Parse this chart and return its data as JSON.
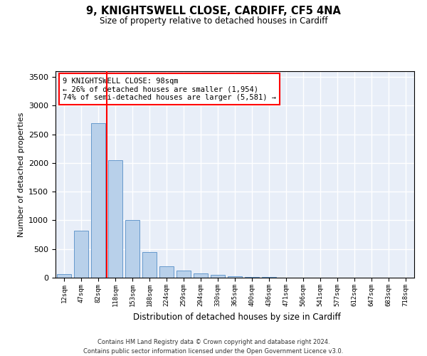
{
  "title": "9, KNIGHTSWELL CLOSE, CARDIFF, CF5 4NA",
  "subtitle": "Size of property relative to detached houses in Cardiff",
  "xlabel": "Distribution of detached houses by size in Cardiff",
  "ylabel": "Number of detached properties",
  "categories": [
    "12sqm",
    "47sqm",
    "82sqm",
    "118sqm",
    "153sqm",
    "188sqm",
    "224sqm",
    "259sqm",
    "294sqm",
    "330sqm",
    "365sqm",
    "400sqm",
    "436sqm",
    "471sqm",
    "506sqm",
    "541sqm",
    "577sqm",
    "612sqm",
    "647sqm",
    "683sqm",
    "718sqm"
  ],
  "values": [
    60,
    820,
    2700,
    2050,
    1000,
    450,
    200,
    130,
    70,
    55,
    30,
    15,
    8,
    5,
    3,
    2,
    1,
    1,
    1,
    0,
    0
  ],
  "bar_color": "#b8d0ea",
  "bar_edge_color": "#6699cc",
  "vline_color": "red",
  "vline_x_idx": 2,
  "annotation_text": "9 KNIGHTSWELL CLOSE: 98sqm\n← 26% of detached houses are smaller (1,954)\n74% of semi-detached houses are larger (5,581) →",
  "annotation_box_color": "white",
  "annotation_box_edge": "red",
  "ylim": [
    0,
    3600
  ],
  "yticks": [
    0,
    500,
    1000,
    1500,
    2000,
    2500,
    3000,
    3500
  ],
  "background_color": "#e8eef8",
  "grid_color": "white",
  "footer_line1": "Contains HM Land Registry data © Crown copyright and database right 2024.",
  "footer_line2": "Contains public sector information licensed under the Open Government Licence v3.0."
}
